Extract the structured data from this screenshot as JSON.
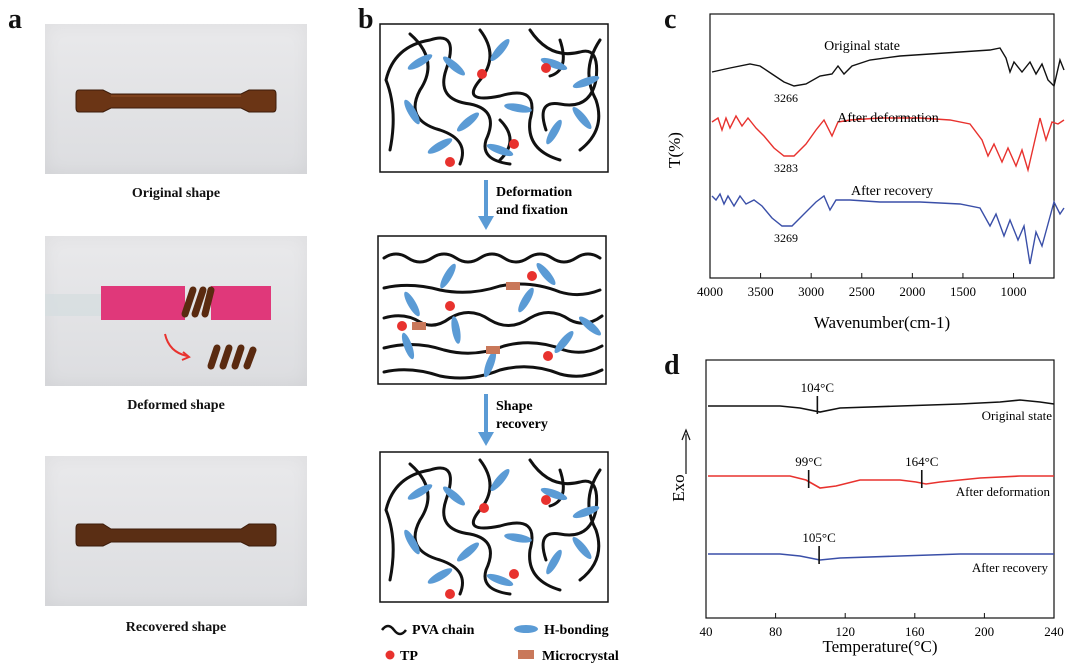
{
  "panels": {
    "a": {
      "letter": "a",
      "captions": [
        "Original shape",
        "Deformed shape",
        "Recovered shape"
      ]
    },
    "b": {
      "letter": "b",
      "arrow1_label": [
        "Deformation",
        "and fixation"
      ],
      "arrow2_label": [
        "Shape",
        "recovery"
      ],
      "legend": {
        "pva": "PVA chain",
        "hbond": "H-bonding",
        "tp": "TP",
        "micro": "Microcrystal"
      }
    },
    "c": {
      "letter": "c"
    },
    "d": {
      "letter": "d"
    }
  },
  "colors": {
    "black_series": "#111111",
    "red_series": "#e8322e",
    "blue_series": "#3a4fa8",
    "hbond": "#5b9bd5",
    "tp": "#e8322e",
    "micro": "#c9785a",
    "clip": "#e0387a"
  },
  "chart_data": [
    {
      "type": "line",
      "panel": "c",
      "xlabel": "Wavenumber(cm-1)",
      "ylabel": "T(%)",
      "x_ticks": [
        4000,
        3500,
        3000,
        2500,
        2000,
        1500,
        1000
      ],
      "xlim": [
        4000,
        600
      ],
      "x_reversed": true,
      "series": [
        {
          "name": "Original state",
          "peak_label": "3266",
          "peak_x": 3266
        },
        {
          "name": "After deformation",
          "peak_label": "3283",
          "peak_x": 3283
        },
        {
          "name": "After recovery",
          "peak_label": "3269",
          "peak_x": 3269
        }
      ]
    },
    {
      "type": "line",
      "panel": "d",
      "xlabel": "Temperature(°C)",
      "ylabel": "Exo",
      "x_ticks": [
        40,
        80,
        120,
        160,
        200,
        240
      ],
      "xlim": [
        40,
        240
      ],
      "series": [
        {
          "name": "Original state",
          "markers": [
            {
              "x": 104,
              "label": "104°C"
            }
          ]
        },
        {
          "name": "After deformation",
          "markers": [
            {
              "x": 99,
              "label": "99°C"
            },
            {
              "x": 164,
              "label": "164°C"
            }
          ]
        },
        {
          "name": "After recovery",
          "markers": [
            {
              "x": 105,
              "label": "105°C"
            }
          ]
        }
      ]
    }
  ]
}
